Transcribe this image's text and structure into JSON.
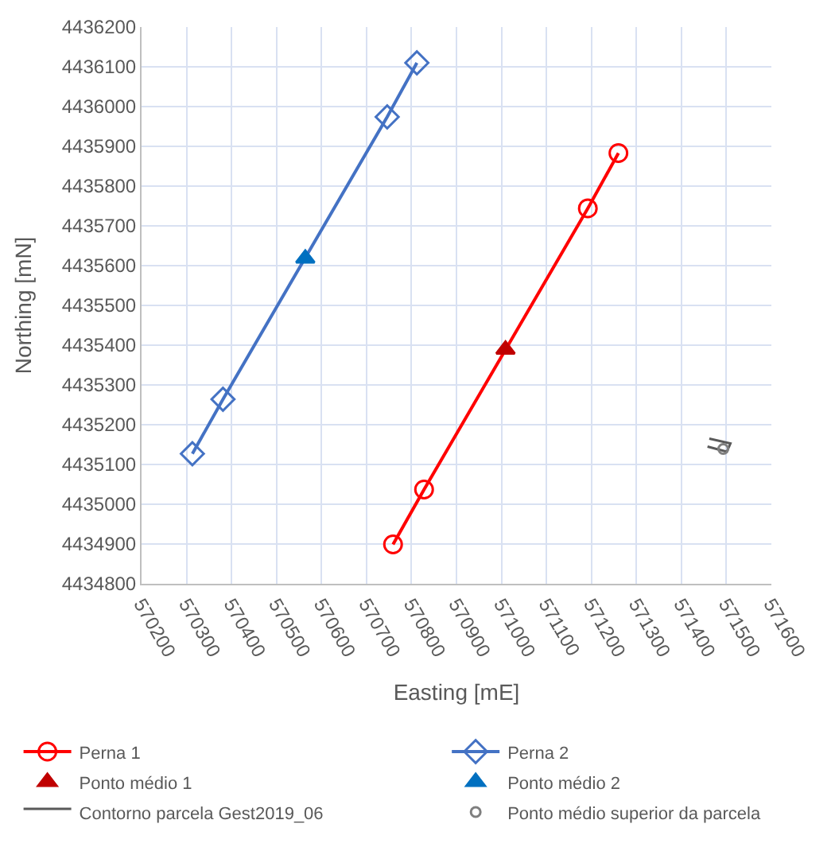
{
  "chart_data": {
    "type": "line",
    "xlabel": "Easting [mE]",
    "ylabel": "Northing [mN]",
    "xlim": [
      570200,
      571600
    ],
    "xticks": [
      570200,
      570300,
      570400,
      570500,
      570600,
      570700,
      570800,
      570900,
      571000,
      571100,
      571200,
      571300,
      571400,
      571500,
      571600
    ],
    "ylim": [
      4434800,
      4436200
    ],
    "yticks": [
      4434800,
      4434900,
      4435000,
      4435100,
      4435200,
      4435300,
      4435400,
      4435500,
      4435600,
      4435700,
      4435800,
      4435900,
      4436000,
      4436100,
      4436200
    ],
    "grid": true,
    "legend": "bottom",
    "series": [
      {
        "name": "Perna 1",
        "marker": "circle",
        "color": "#ff0000",
        "x": [
          570759,
          570828,
          571192,
          571260
        ],
        "values": [
          4434899,
          4435037,
          4435744,
          4435883
        ]
      },
      {
        "name": "Perna 2",
        "marker": "diamond",
        "color": "#4472c4",
        "x": [
          570313,
          570381,
          570746,
          570812
        ],
        "values": [
          4435127,
          4435264,
          4435974,
          4436110
        ]
      },
      {
        "name": "Ponto médio 1",
        "type": "scatter",
        "marker": "triangle",
        "color": "#c00000",
        "x": [
          571009
        ],
        "values": [
          4435389
        ]
      },
      {
        "name": "Ponto médio 2",
        "type": "scatter",
        "marker": "triangle",
        "color": "#0070c0",
        "x": [
          570564
        ],
        "values": [
          4435618
        ]
      },
      {
        "name": "Contorno parcela Gest2019_06",
        "marker": "none",
        "color": "#595959",
        "x": [
          571462,
          571509,
          571501,
          571458
        ],
        "values": [
          4435165,
          4435153,
          4435132,
          4435145
        ]
      },
      {
        "name": "Ponto médio superior da parcela",
        "type": "scatter",
        "marker": "circle",
        "color": "#7f7f7f",
        "x": [
          571493
        ],
        "values": [
          4435139
        ]
      }
    ]
  }
}
